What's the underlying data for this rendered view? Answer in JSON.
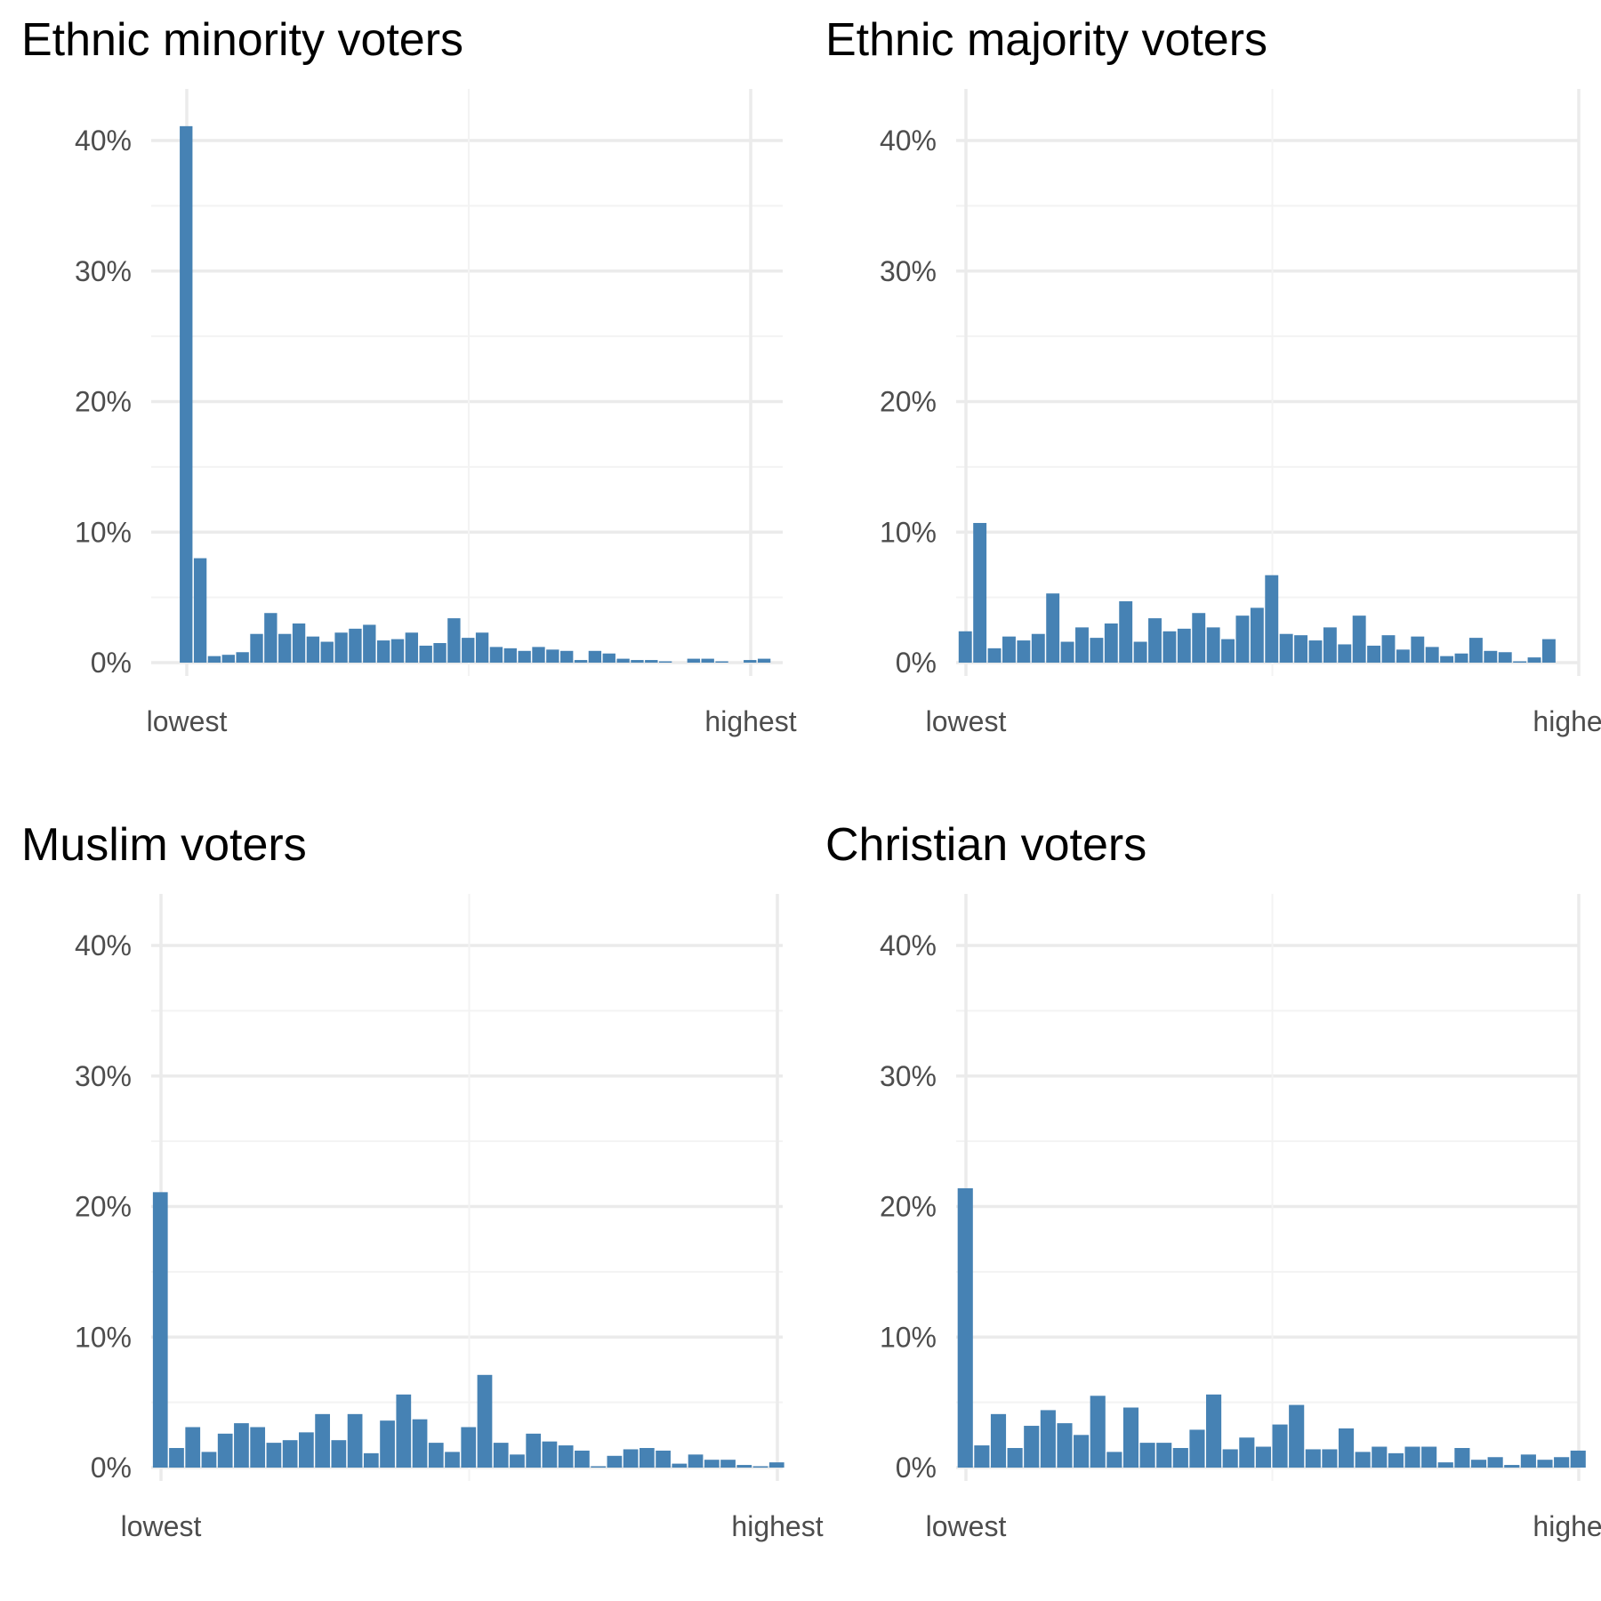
{
  "colors": {
    "bar": "#4682b4",
    "grid_major": "#ebebeb",
    "grid_minor": "#f3f3f3",
    "tick_text": "#4d4d4d",
    "title_text": "#000000"
  },
  "chart_data": [
    {
      "type": "bar",
      "title": "Ethnic minority voters",
      "xlabel": "",
      "ylabel": "",
      "ylim": [
        0,
        0.44
      ],
      "yticks": [
        0,
        0.1,
        0.2,
        0.3,
        0.4
      ],
      "ytick_labels": [
        "0%",
        "10%",
        "20%",
        "30%",
        "40%"
      ],
      "xlim": [
        -0.5,
        42.5
      ],
      "xticks": [
        0,
        40
      ],
      "xtick_labels": [
        "lowest",
        "highest"
      ],
      "bins": 43,
      "values": [
        0.411,
        0.08,
        0.005,
        0.006,
        0.008,
        0.022,
        0.038,
        0.022,
        0.03,
        0.02,
        0.016,
        0.023,
        0.026,
        0.029,
        0.017,
        0.018,
        0.023,
        0.013,
        0.015,
        0.034,
        0.019,
        0.023,
        0.012,
        0.011,
        0.009,
        0.012,
        0.01,
        0.009,
        0.002,
        0.009,
        0.007,
        0.003,
        0.002,
        0.002,
        0.001,
        0.0,
        0.003,
        0.003,
        0.001,
        0.0,
        0.002,
        0.003,
        0.0
      ]
    },
    {
      "type": "bar",
      "title": "Ethnic majority voters",
      "xlabel": "",
      "ylabel": "",
      "ylim": [
        0,
        0.44
      ],
      "yticks": [
        0,
        0.1,
        0.2,
        0.3,
        0.4
      ],
      "ytick_labels": [
        "0%",
        "10%",
        "20%",
        "30%",
        "40%"
      ],
      "xlim": [
        -0.5,
        42.5
      ],
      "xticks": [
        0,
        42
      ],
      "xtick_labels": [
        "lowest",
        "highest"
      ],
      "bins": 43,
      "values": [
        0.024,
        0.107,
        0.011,
        0.02,
        0.017,
        0.022,
        0.053,
        0.016,
        0.027,
        0.019,
        0.03,
        0.047,
        0.016,
        0.034,
        0.024,
        0.026,
        0.038,
        0.027,
        0.018,
        0.036,
        0.042,
        0.067,
        0.022,
        0.021,
        0.017,
        0.027,
        0.014,
        0.036,
        0.013,
        0.021,
        0.01,
        0.02,
        0.012,
        0.005,
        0.007,
        0.019,
        0.009,
        0.008,
        0.001,
        0.004,
        0.018,
        0.0,
        0.0
      ]
    },
    {
      "type": "bar",
      "title": "Muslim voters",
      "xlabel": "",
      "ylabel": "",
      "ylim": [
        0,
        0.44
      ],
      "yticks": [
        0,
        0.1,
        0.2,
        0.3,
        0.4
      ],
      "ytick_labels": [
        "0%",
        "10%",
        "20%",
        "30%",
        "40%"
      ],
      "xlim": [
        -0.5,
        38.5
      ],
      "xticks": [
        0,
        38
      ],
      "xtick_labels": [
        "lowest",
        "highest"
      ],
      "bins": 39,
      "values": [
        0.211,
        0.015,
        0.031,
        0.012,
        0.026,
        0.034,
        0.031,
        0.019,
        0.021,
        0.027,
        0.041,
        0.021,
        0.041,
        0.011,
        0.036,
        0.056,
        0.037,
        0.019,
        0.012,
        0.031,
        0.071,
        0.019,
        0.01,
        0.026,
        0.02,
        0.017,
        0.013,
        0.001,
        0.009,
        0.014,
        0.015,
        0.013,
        0.003,
        0.01,
        0.006,
        0.006,
        0.002,
        0.001,
        0.004
      ]
    },
    {
      "type": "bar",
      "title": "Christian voters",
      "xlabel": "",
      "ylabel": "",
      "ylim": [
        0,
        0.44
      ],
      "yticks": [
        0,
        0.1,
        0.2,
        0.3,
        0.4
      ],
      "ytick_labels": [
        "0%",
        "10%",
        "20%",
        "30%",
        "40%"
      ],
      "xlim": [
        -0.5,
        37.5
      ],
      "xticks": [
        0,
        37
      ],
      "xtick_labels": [
        "lowest",
        "highest"
      ],
      "bins": 38,
      "values": [
        0.214,
        0.017,
        0.041,
        0.015,
        0.032,
        0.044,
        0.034,
        0.025,
        0.055,
        0.012,
        0.046,
        0.019,
        0.019,
        0.015,
        0.029,
        0.056,
        0.014,
        0.023,
        0.016,
        0.033,
        0.048,
        0.014,
        0.014,
        0.03,
        0.012,
        0.016,
        0.011,
        0.016,
        0.016,
        0.004,
        0.015,
        0.006,
        0.008,
        0.002,
        0.01,
        0.006,
        0.008,
        0.013
      ]
    }
  ]
}
